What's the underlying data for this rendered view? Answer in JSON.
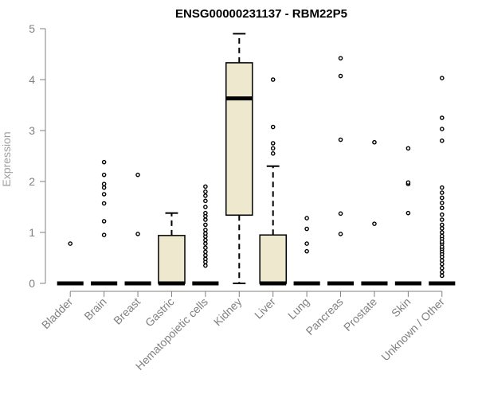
{
  "chart_data": {
    "type": "boxplot",
    "title": "ENSG00000231137 - RBM22P5",
    "xlabel": "",
    "ylabel": "Expression",
    "ylim": [
      0,
      5
    ],
    "yticks": [
      0,
      1,
      2,
      3,
      4,
      5
    ],
    "box_color": "#EEE8CF",
    "line_color": "#000000",
    "axis_color": "#808080",
    "categories": [
      "Bladder",
      "Brain",
      "Breast",
      "Gastric",
      "Hematopoietic cells",
      "Kidney",
      "Liver",
      "Lung",
      "Pancreas",
      "Prostate",
      "Skin",
      "Unknown / Other"
    ],
    "boxes": [
      {
        "category": "Bladder",
        "q1": 0,
        "median": 0,
        "q3": 0,
        "whisker_low": 0,
        "whisker_high": 0,
        "outliers": [
          0.78
        ]
      },
      {
        "category": "Brain",
        "q1": 0,
        "median": 0,
        "q3": 0,
        "whisker_low": 0,
        "whisker_high": 0,
        "outliers": [
          0.95,
          1.22,
          1.57,
          1.75,
          1.88,
          1.95,
          2.13,
          2.38
        ]
      },
      {
        "category": "Breast",
        "q1": 0,
        "median": 0,
        "q3": 0,
        "whisker_low": 0,
        "whisker_high": 0,
        "outliers": [
          0.97,
          2.13
        ]
      },
      {
        "category": "Gastric",
        "q1": 0,
        "median": 0,
        "q3": 0.94,
        "whisker_low": 0,
        "whisker_high": 1.38,
        "outliers": []
      },
      {
        "category": "Hematopoietic cells",
        "q1": 0,
        "median": 0,
        "q3": 0,
        "whisker_low": 0,
        "whisker_high": 0,
        "outliers": [
          0.35,
          0.42,
          0.48,
          0.55,
          0.62,
          0.7,
          0.78,
          0.85,
          0.92,
          0.98,
          1.05,
          1.15,
          1.25,
          1.32,
          1.38,
          1.5,
          1.62,
          1.72,
          1.8,
          1.9
        ]
      },
      {
        "category": "Kidney",
        "q1": 1.34,
        "median": 3.63,
        "q3": 4.33,
        "whisker_low": 0,
        "whisker_high": 4.9,
        "outliers": []
      },
      {
        "category": "Liver",
        "q1": 0,
        "median": 0,
        "q3": 0.95,
        "whisker_low": 0,
        "whisker_high": 2.3,
        "outliers": [
          2.55,
          2.65,
          2.75,
          3.07,
          4.0
        ]
      },
      {
        "category": "Lung",
        "q1": 0,
        "median": 0,
        "q3": 0,
        "whisker_low": 0,
        "whisker_high": 0,
        "outliers": [
          0.63,
          0.78,
          1.07,
          1.28
        ]
      },
      {
        "category": "Pancreas",
        "q1": 0,
        "median": 0,
        "q3": 0,
        "whisker_low": 0,
        "whisker_high": 0,
        "outliers": [
          0.97,
          1.37,
          2.82,
          4.07,
          4.42
        ]
      },
      {
        "category": "Prostate",
        "q1": 0,
        "median": 0,
        "q3": 0,
        "whisker_low": 0,
        "whisker_high": 0,
        "outliers": [
          1.17,
          2.77
        ]
      },
      {
        "category": "Skin",
        "q1": 0,
        "median": 0,
        "q3": 0,
        "whisker_low": 0,
        "whisker_high": 0,
        "outliers": [
          1.38,
          1.95,
          1.98,
          2.65
        ]
      },
      {
        "category": "Unknown / Other",
        "q1": 0,
        "median": 0,
        "q3": 0,
        "whisker_low": 0,
        "whisker_high": 0,
        "outliers": [
          0.15,
          0.22,
          0.3,
          0.38,
          0.45,
          0.52,
          0.58,
          0.63,
          0.68,
          0.72,
          0.78,
          0.82,
          0.88,
          0.93,
          1.0,
          1.08,
          1.15,
          1.25,
          1.35,
          1.48,
          1.58,
          1.68,
          1.78,
          1.88,
          2.8,
          3.03,
          3.25,
          4.03
        ]
      }
    ]
  }
}
